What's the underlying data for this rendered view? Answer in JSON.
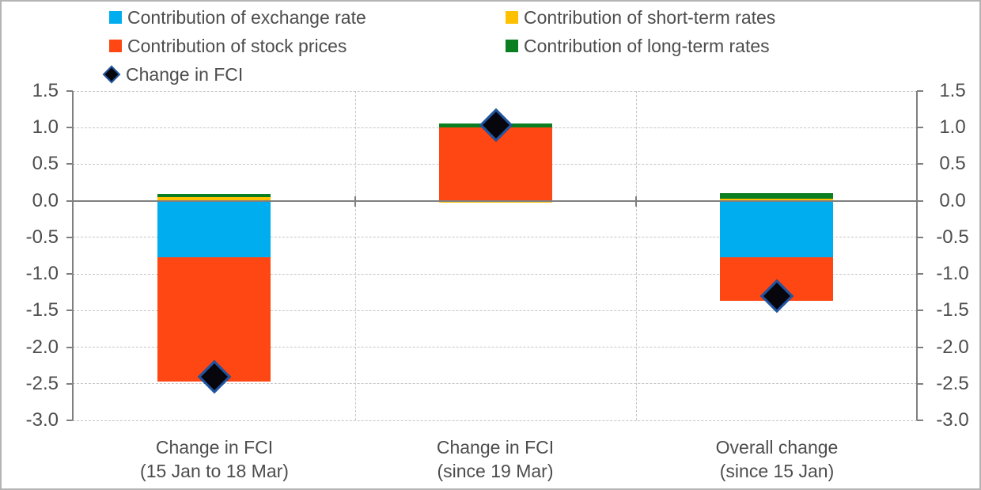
{
  "chart_data": {
    "type": "bar",
    "stacked": true,
    "title": "",
    "xlabel": "",
    "ylabel": "",
    "categories": [
      [
        "Change in FCI",
        "(15 Jan to 18 Mar)"
      ],
      [
        "Change in FCI",
        "(since 19 Mar)"
      ],
      [
        "Overall change",
        "(since 15 Jan)"
      ]
    ],
    "series": [
      {
        "name": "Contribution of exchange rate",
        "color": "#00aeef",
        "values": [
          -0.77,
          0.0,
          -0.77
        ]
      },
      {
        "name": "Contribution of stock prices",
        "color": "#ff4713",
        "values": [
          -1.7,
          1.0,
          -0.6
        ]
      },
      {
        "name": "Contribution of short-term rates",
        "color": "#ffc000",
        "values": [
          0.05,
          -0.02,
          0.03
        ]
      },
      {
        "name": "Contribution of long-term rates",
        "color": "#0b7e22",
        "values": [
          0.04,
          0.06,
          0.07
        ]
      }
    ],
    "marker_series": {
      "name": "Change in FCI",
      "marker": "diamond",
      "fill": "#06060c",
      "border": "#2156a5",
      "values": [
        -2.4,
        1.04,
        -1.3
      ]
    },
    "ylim": [
      -3.0,
      1.5
    ],
    "ytick_step": 0.5,
    "yticks": [
      1.5,
      1.0,
      0.5,
      0.0,
      -0.5,
      -1.0,
      -1.5,
      -2.0,
      -2.5,
      -3.0
    ],
    "ytick_labels": [
      "1.5",
      "1.0",
      "0.5",
      "0.0",
      "-0.5",
      "-1.0",
      "-1.5",
      "-2.0",
      "-2.5",
      "-3.0"
    ],
    "axes": {
      "y_axis_sides": "both",
      "grid_horizontal": "dashed",
      "grid_vertical_separators": true
    },
    "legend_position": "top",
    "colors": {
      "axis": "#7f7f7f",
      "grid": "#c6c6c6",
      "text": "#4d4d4d"
    }
  }
}
